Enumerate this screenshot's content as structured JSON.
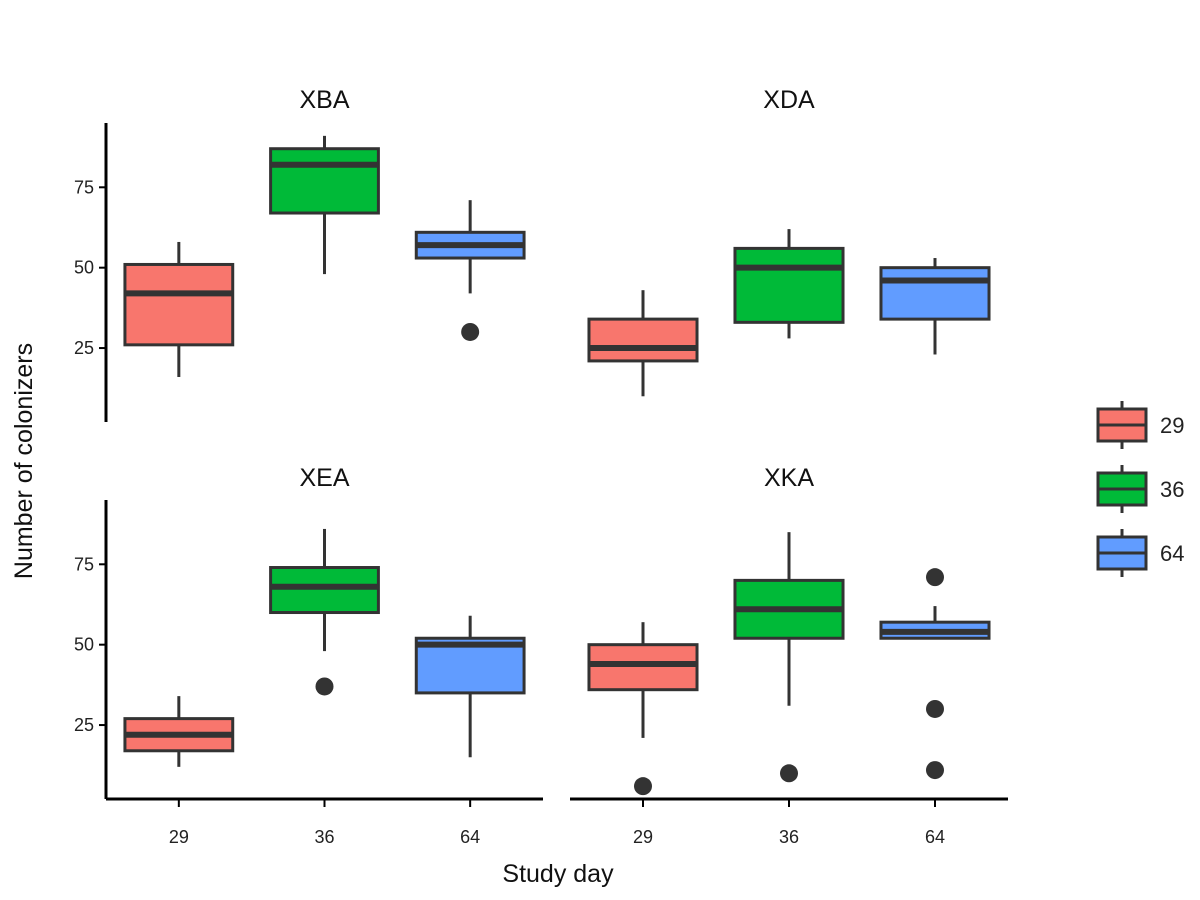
{
  "chart_data": {
    "type": "box",
    "xlabel": "Study day",
    "ylabel": "Number of colonizers",
    "categories": [
      "29",
      "36",
      "64"
    ],
    "y_ticks": [
      25,
      50,
      75
    ],
    "ylim": [
      2,
      95
    ],
    "grid": false,
    "legend_position": "right",
    "legend": [
      {
        "label": "29",
        "color": "#F8766D"
      },
      {
        "label": "36",
        "color": "#00BA38"
      },
      {
        "label": "64",
        "color": "#619CFF"
      }
    ],
    "facets": [
      {
        "title": "XBA",
        "boxes": [
          {
            "category": "29",
            "whisker_low": 16,
            "q1": 26,
            "median": 42,
            "q3": 51,
            "whisker_high": 58,
            "outliers": []
          },
          {
            "category": "36",
            "whisker_low": 48,
            "q1": 67,
            "median": 82,
            "q3": 87,
            "whisker_high": 91,
            "outliers": []
          },
          {
            "category": "64",
            "whisker_low": 42,
            "q1": 53,
            "median": 57,
            "q3": 61,
            "whisker_high": 71,
            "outliers": [
              30
            ]
          }
        ]
      },
      {
        "title": "XDA",
        "boxes": [
          {
            "category": "29",
            "whisker_low": 10,
            "q1": 21,
            "median": 25,
            "q3": 34,
            "whisker_high": 43,
            "outliers": []
          },
          {
            "category": "36",
            "whisker_low": 28,
            "q1": 33,
            "median": 50,
            "q3": 56,
            "whisker_high": 62,
            "outliers": []
          },
          {
            "category": "64",
            "whisker_low": 23,
            "q1": 34,
            "median": 46,
            "q3": 50,
            "whisker_high": 53,
            "outliers": []
          }
        ]
      },
      {
        "title": "XEA",
        "boxes": [
          {
            "category": "29",
            "whisker_low": 12,
            "q1": 17,
            "median": 22,
            "q3": 27,
            "whisker_high": 34,
            "outliers": []
          },
          {
            "category": "36",
            "whisker_low": 48,
            "q1": 60,
            "median": 68,
            "q3": 74,
            "whisker_high": 86,
            "outliers": [
              37
            ]
          },
          {
            "category": "64",
            "whisker_low": 15,
            "q1": 35,
            "median": 50,
            "q3": 52,
            "whisker_high": 59,
            "outliers": []
          }
        ]
      },
      {
        "title": "XKA",
        "boxes": [
          {
            "category": "29",
            "whisker_low": 21,
            "q1": 36,
            "median": 44,
            "q3": 50,
            "whisker_high": 57,
            "outliers": [
              6
            ]
          },
          {
            "category": "36",
            "whisker_low": 31,
            "q1": 52,
            "median": 61,
            "q3": 70,
            "whisker_high": 85,
            "outliers": [
              10
            ]
          },
          {
            "category": "64",
            "whisker_low": 52,
            "q1": 52,
            "median": 54,
            "q3": 57,
            "whisker_high": 62,
            "outliers": [
              71,
              30,
              11
            ]
          }
        ]
      }
    ]
  }
}
